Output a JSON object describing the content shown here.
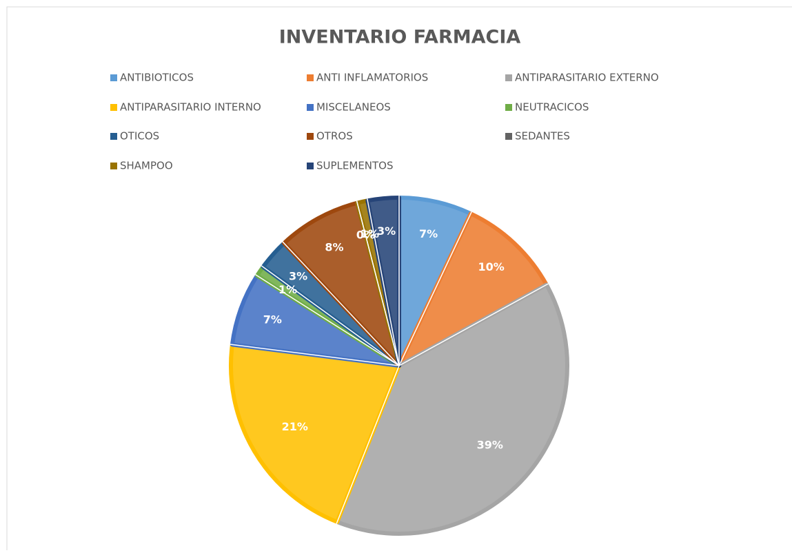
{
  "chart_data": {
    "type": "pie",
    "title": "INVENTARIO FARMACIA",
    "categories": [
      "ANTIBIOTICOS",
      "ANTI INFLAMATORIOS",
      "ANTIPARASITARIO EXTERNO",
      "ANTIPARASITARIO INTERNO",
      "MISCELANEOS",
      "NEUTRACICOS",
      "OTICOS",
      "OTROS",
      "SEDANTES",
      "SHAMPOO",
      "SUPLEMENTOS"
    ],
    "values": [
      7,
      10,
      39,
      21,
      7,
      1,
      3,
      8,
      0,
      1,
      3
    ],
    "value_labels": [
      "7%",
      "10%",
      "39%",
      "21%",
      "7%",
      "1%",
      "3%",
      "8%",
      "0%",
      "1%",
      "3%"
    ],
    "colors": [
      "#5b9bd5",
      "#ed7d31",
      "#a5a5a5",
      "#ffc000",
      "#4472c4",
      "#70ad47",
      "#255e91",
      "#9e480e",
      "#636363",
      "#997300",
      "#264478"
    ],
    "legend": "top"
  }
}
